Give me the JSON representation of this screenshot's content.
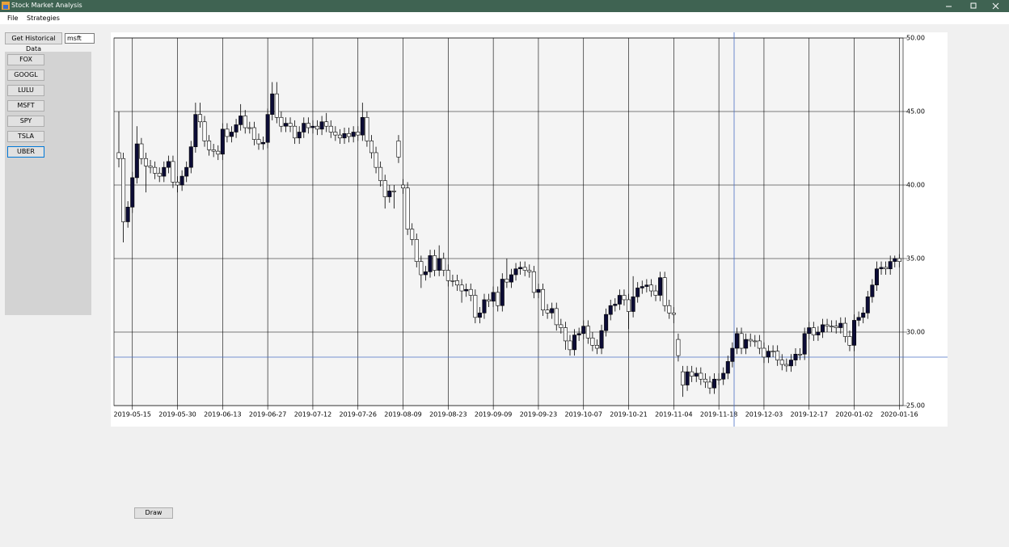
{
  "window": {
    "title": "Stock Market Analysis"
  },
  "menu": [
    "File",
    "Strategies"
  ],
  "toolbar": {
    "button": "Get Historical Data",
    "symbol_input": "msft"
  },
  "symbols": [
    "FOX",
    "GOOGL",
    "LULU",
    "MSFT",
    "SPY",
    "TSLA",
    "UBER"
  ],
  "draw_button": "Draw",
  "chart_data": {
    "type": "candlestick",
    "categories": [
      null,
      null,
      null,
      "2019-05-15",
      null,
      null,
      null,
      null,
      null,
      null,
      null,
      null,
      null,
      "2019-05-30",
      null,
      null,
      null,
      null,
      null,
      null,
      null,
      null,
      null,
      "2019-06-13",
      null,
      null,
      null,
      null,
      null,
      null,
      null,
      null,
      null,
      "2019-06-27",
      null,
      null,
      null,
      null,
      null,
      null,
      null,
      null,
      null,
      "2019-07-12",
      null,
      null,
      null,
      null,
      null,
      null,
      null,
      null,
      null,
      "2019-07-26",
      null,
      null,
      null,
      null,
      null,
      null,
      null,
      null,
      null,
      "2019-08-09",
      null,
      null,
      null,
      null,
      null,
      null,
      null,
      null,
      null,
      "2019-08-23",
      null,
      null,
      null,
      null,
      null,
      null,
      null,
      null,
      null,
      "2019-09-09",
      null,
      null,
      null,
      null,
      null,
      null,
      null,
      null,
      null,
      "2019-09-23",
      null,
      null,
      null,
      null,
      null,
      null,
      null,
      null,
      null,
      "2019-10-07",
      null,
      null,
      null,
      null,
      null,
      null,
      null,
      null,
      null,
      "2019-10-21",
      null,
      null,
      null,
      null,
      null,
      null,
      null,
      null,
      null,
      "2019-11-04",
      null,
      null,
      null,
      null,
      null,
      null,
      null,
      null,
      null,
      "2019-11-18",
      null,
      null,
      null,
      null,
      null,
      null,
      null,
      null,
      null,
      "2019-12-03",
      null,
      null,
      null,
      null,
      null,
      null,
      null,
      null,
      null,
      "2019-12-17",
      null,
      null,
      null,
      null,
      null,
      null,
      null,
      null,
      null,
      "2020-01-02",
      null,
      null,
      null,
      null,
      null,
      null,
      null,
      null,
      null,
      "2020-01-16"
    ],
    "open": [
      42.2,
      41.8,
      37.5,
      38.5,
      40.5,
      42.8,
      41.8,
      41.3,
      41.2,
      40.8,
      40.6,
      41.2,
      41.6,
      40.2,
      40.0,
      40.6,
      41.2,
      42.6,
      44.8,
      44.3,
      43.0,
      42.4,
      42.3,
      42.1,
      43.8,
      43.3,
      43.6,
      44.1,
      44.7,
      43.9,
      43.9,
      43.1,
      42.8,
      42.9,
      44.8,
      46.2,
      44.6,
      44.0,
      44.2,
      44.0,
      43.2,
      43.6,
      44.2,
      43.9,
      44.0,
      43.8,
      44.3,
      44.0,
      43.6,
      43.4,
      43.2,
      43.5,
      43.3,
      43.6,
      43.4,
      44.6,
      43.0,
      42.2,
      41.2,
      40.3,
      39.2,
      39.6,
      43.0,
      40.0,
      39.8,
      37.0,
      36.3,
      34.8,
      33.9,
      34.1,
      35.2,
      34.2,
      35.0,
      34.2,
      33.5,
      33.5,
      33.2,
      32.8,
      32.9,
      32.5,
      31.0,
      31.3,
      32.2,
      32.1,
      32.7,
      31.8,
      33.6,
      33.4,
      33.9,
      34.3,
      34.4,
      34.2,
      34.1,
      32.7,
      32.9,
      31.5,
      31.3,
      31.6,
      30.5,
      30.3,
      29.4,
      28.8,
      29.8,
      29.9,
      30.4,
      29.6,
      29.1,
      28.9,
      30.1,
      31.2,
      31.8,
      31.9,
      32.5,
      32.2,
      31.4,
      32.4,
      33.0,
      33.1,
      33.2,
      32.8,
      32.5,
      33.7,
      31.8,
      31.3,
      29.5,
      27.3,
      26.4,
      27.3,
      27.0,
      27.2,
      26.8,
      26.6,
      26.2,
      26.8,
      26.8,
      27.2,
      28.0,
      28.9,
      29.9,
      28.9,
      29.5,
      29.4,
      29.4,
      28.9,
      28.3,
      28.7,
      28.7,
      28.1,
      27.8,
      27.7,
      28.1,
      28.5,
      28.5,
      29.9,
      30.3,
      29.8,
      30.0,
      30.5,
      30.4,
      30.4,
      30.3,
      30.6,
      29.7,
      29.1,
      30.8,
      31.0,
      31.3,
      32.4,
      33.2,
      34.3,
      34.4,
      34.3,
      34.8,
      35.0
    ],
    "high": [
      45.0,
      42.2,
      38.9,
      40.9,
      44.0,
      43.2,
      42.2,
      41.7,
      41.6,
      41.2,
      41.6,
      42.0,
      42.0,
      40.6,
      41.0,
      41.6,
      43.0,
      45.6,
      45.6,
      44.7,
      43.4,
      42.8,
      42.7,
      44.2,
      44.2,
      44.0,
      44.5,
      45.5,
      45.1,
      44.3,
      44.3,
      43.5,
      43.3,
      45.2,
      47.0,
      47.0,
      45.0,
      44.6,
      44.6,
      44.4,
      44.0,
      44.6,
      44.6,
      44.4,
      44.4,
      44.7,
      44.9,
      44.4,
      44.0,
      43.8,
      43.9,
      43.9,
      44.0,
      44.0,
      45.6,
      45.0,
      43.4,
      42.6,
      41.6,
      40.7,
      40.0,
      40.0,
      43.4,
      40.4,
      40.2,
      37.4,
      36.7,
      35.2,
      34.5,
      35.6,
      35.6,
      35.9,
      35.4,
      34.6,
      33.9,
      33.9,
      33.6,
      33.3,
      33.3,
      32.9,
      31.7,
      32.6,
      32.6,
      33.1,
      33.1,
      34.0,
      35.0,
      34.3,
      34.7,
      34.8,
      34.8,
      34.6,
      34.5,
      33.3,
      33.3,
      31.9,
      32.0,
      32.0,
      30.9,
      30.7,
      29.8,
      30.2,
      30.3,
      30.8,
      30.8,
      30.0,
      29.5,
      30.5,
      31.6,
      32.2,
      32.3,
      32.9,
      32.9,
      32.6,
      33.8,
      33.4,
      33.5,
      33.6,
      33.6,
      33.2,
      34.1,
      34.1,
      32.2,
      31.7,
      29.9,
      27.7,
      27.7,
      27.7,
      27.6,
      27.6,
      27.2,
      27.0,
      27.2,
      27.2,
      27.6,
      28.4,
      29.3,
      30.3,
      30.3,
      29.9,
      29.9,
      29.8,
      29.8,
      29.3,
      29.1,
      29.1,
      29.1,
      28.5,
      28.2,
      28.5,
      28.9,
      28.9,
      30.3,
      30.7,
      30.7,
      30.4,
      30.9,
      30.9,
      30.8,
      30.8,
      31.0,
      31.0,
      30.1,
      31.2,
      31.4,
      31.7,
      32.8,
      33.6,
      34.8,
      34.8,
      34.8,
      35.2,
      35.2,
      35.3
    ],
    "low": [
      41.2,
      36.1,
      37.1,
      38.1,
      40.1,
      41.4,
      39.5,
      40.8,
      40.4,
      40.2,
      40.2,
      40.8,
      39.8,
      39.5,
      39.6,
      40.2,
      40.8,
      42.2,
      43.9,
      42.6,
      42.0,
      41.9,
      41.7,
      41.7,
      42.9,
      42.9,
      43.2,
      43.7,
      43.5,
      43.5,
      42.7,
      42.4,
      42.4,
      42.5,
      44.4,
      44.2,
      43.6,
      43.6,
      43.6,
      42.8,
      42.8,
      43.2,
      43.5,
      43.5,
      43.4,
      43.4,
      43.6,
      43.2,
      43.0,
      42.8,
      42.8,
      42.9,
      42.9,
      43.0,
      43.0,
      42.6,
      41.8,
      40.8,
      39.9,
      38.4,
      38.8,
      38.4,
      41.5,
      39.4,
      36.6,
      35.9,
      34.4,
      33.0,
      33.5,
      33.7,
      33.8,
      33.8,
      33.8,
      33.1,
      33.1,
      32.8,
      32.0,
      32.4,
      32.1,
      30.6,
      30.6,
      30.9,
      31.7,
      31.7,
      31.4,
      31.4,
      33.0,
      33.0,
      33.5,
      33.9,
      33.8,
      33.7,
      32.3,
      32.3,
      31.1,
      30.9,
      30.9,
      30.1,
      29.9,
      28.8,
      28.4,
      28.4,
      29.4,
      29.5,
      29.2,
      28.7,
      28.5,
      28.5,
      29.7,
      30.8,
      31.4,
      31.5,
      31.8,
      30.2,
      31.0,
      32.0,
      32.6,
      32.7,
      32.4,
      32.1,
      32.1,
      31.4,
      30.9,
      30.6,
      28.0,
      25.6,
      26.0,
      26.6,
      26.6,
      26.4,
      26.2,
      25.8,
      25.8,
      26.4,
      26.4,
      26.8,
      27.6,
      28.5,
      28.5,
      28.5,
      29.0,
      29.0,
      28.5,
      27.9,
      27.9,
      28.3,
      27.7,
      27.4,
      27.3,
      27.3,
      27.7,
      28.1,
      28.1,
      29.5,
      29.4,
      29.4,
      29.6,
      30.0,
      30.0,
      29.9,
      29.9,
      29.3,
      28.7,
      28.7,
      30.4,
      30.6,
      30.9,
      32.0,
      32.8,
      33.9,
      33.9,
      33.9,
      34.4,
      34.4
    ],
    "close": [
      41.8,
      37.5,
      38.5,
      40.5,
      42.8,
      41.8,
      41.3,
      41.2,
      40.8,
      40.6,
      41.2,
      41.6,
      40.2,
      40.0,
      40.6,
      41.2,
      42.6,
      44.8,
      44.3,
      43.0,
      42.4,
      42.3,
      42.1,
      43.8,
      43.3,
      43.6,
      44.1,
      44.7,
      43.9,
      43.9,
      43.1,
      42.8,
      42.9,
      44.8,
      46.2,
      44.6,
      44.0,
      44.2,
      44.0,
      43.2,
      43.6,
      44.2,
      43.9,
      44.0,
      43.8,
      44.3,
      44.0,
      43.6,
      43.4,
      43.2,
      43.5,
      43.3,
      43.6,
      43.4,
      44.6,
      43.0,
      42.2,
      41.2,
      40.3,
      39.2,
      39.6,
      39.6,
      41.9,
      39.8,
      37.0,
      36.3,
      34.8,
      33.9,
      34.1,
      35.2,
      34.2,
      35.0,
      34.2,
      33.5,
      33.5,
      33.2,
      32.8,
      32.9,
      32.5,
      31.0,
      31.3,
      32.2,
      32.1,
      32.7,
      31.8,
      33.6,
      33.4,
      33.9,
      34.3,
      34.4,
      34.2,
      34.1,
      32.7,
      32.9,
      31.5,
      31.3,
      31.6,
      30.5,
      30.3,
      29.4,
      28.8,
      29.8,
      29.9,
      30.4,
      29.6,
      29.1,
      28.9,
      30.1,
      31.2,
      31.8,
      31.9,
      32.5,
      32.2,
      31.4,
      32.4,
      33.0,
      33.1,
      33.2,
      32.8,
      32.5,
      33.7,
      31.8,
      31.3,
      31.2,
      28.4,
      26.4,
      27.3,
      27.0,
      27.2,
      26.8,
      26.6,
      26.2,
      26.8,
      26.8,
      27.2,
      28.0,
      28.9,
      29.9,
      28.9,
      29.5,
      29.4,
      29.4,
      28.9,
      28.3,
      28.7,
      28.7,
      28.1,
      27.8,
      27.7,
      28.1,
      28.5,
      28.5,
      29.9,
      30.3,
      29.8,
      30.0,
      30.5,
      30.4,
      30.4,
      30.3,
      30.6,
      29.7,
      29.1,
      30.8,
      31.0,
      31.3,
      32.4,
      33.2,
      34.3,
      34.4,
      34.3,
      34.8,
      35.0,
      34.8
    ],
    "ylim": [
      25,
      50
    ],
    "yticks": [
      {
        "value": 25,
        "label": "25.00"
      },
      {
        "value": 30,
        "label": "30.00"
      },
      {
        "value": 35,
        "label": "35.00"
      },
      {
        "value": 40,
        "label": "40.00"
      },
      {
        "value": 45,
        "label": "45.00"
      },
      {
        "value": 50,
        "label": "50.00"
      }
    ],
    "grid": true,
    "up_color": "#0c0c36",
    "down_color": "#ffffff"
  }
}
